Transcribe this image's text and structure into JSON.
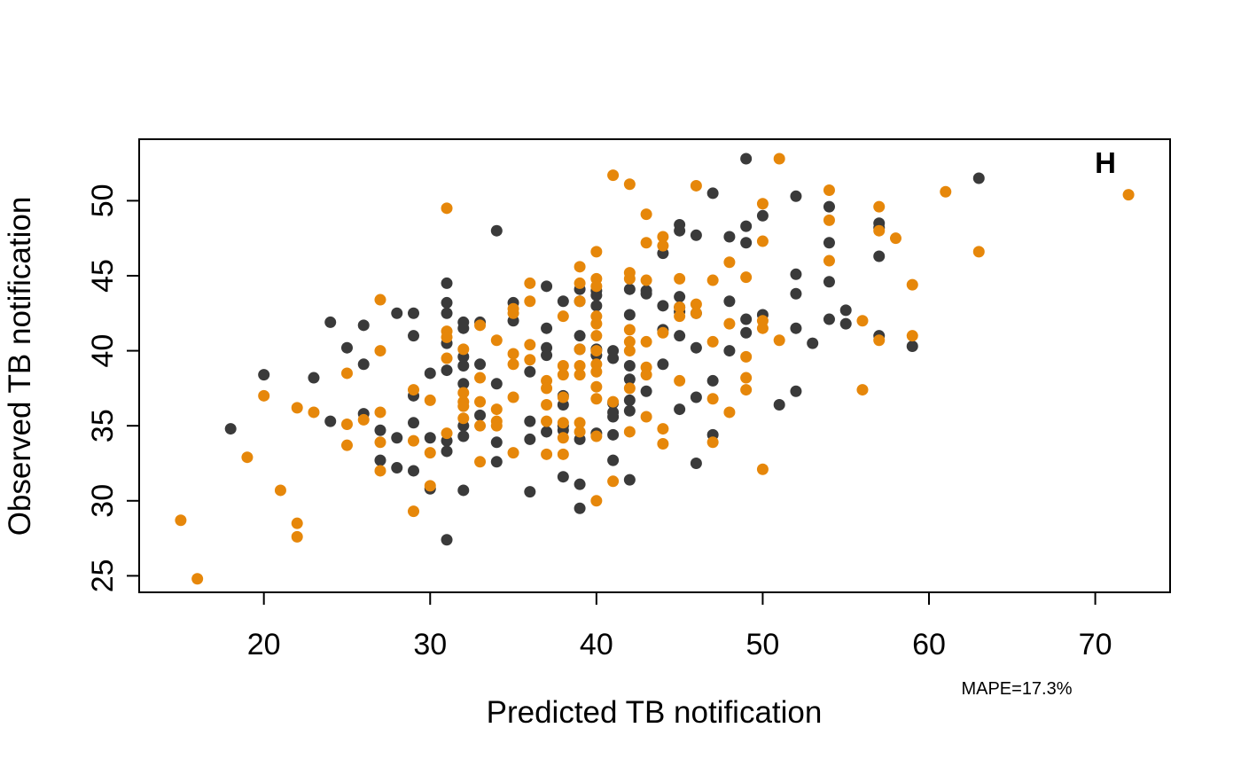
{
  "chart_data": {
    "type": "scatter",
    "title": "",
    "panel_label": "H",
    "xlabel": "Predicted TB notification",
    "ylabel": "Observed TB notification",
    "annotation": "MAPE=17.3%",
    "xlim": [
      12.5,
      74.5
    ],
    "ylim": [
      23.9,
      54.1
    ],
    "x_ticks": [
      20,
      30,
      40,
      50,
      60,
      70
    ],
    "y_ticks": [
      25,
      30,
      35,
      40,
      45,
      50
    ],
    "grid": false,
    "colors": {
      "dark": "#3a3a3a",
      "orange": "#e6870a"
    },
    "series": [
      {
        "color_key": "dark",
        "points": [
          [
            18,
            34.8
          ],
          [
            20,
            38.4
          ],
          [
            23,
            38.2
          ],
          [
            24,
            35.3
          ],
          [
            24,
            41.9
          ],
          [
            25,
            40.2
          ],
          [
            26,
            39.1
          ],
          [
            26,
            41.7
          ],
          [
            26,
            35.8
          ],
          [
            27,
            34.7
          ],
          [
            27,
            32.7
          ],
          [
            28,
            42.5
          ],
          [
            28,
            34.2
          ],
          [
            28,
            32.2
          ],
          [
            29,
            42.5
          ],
          [
            29,
            41.0
          ],
          [
            29,
            37.0
          ],
          [
            29,
            35.2
          ],
          [
            29,
            32.0
          ],
          [
            30,
            38.5
          ],
          [
            30,
            34.2
          ],
          [
            30,
            30.8
          ],
          [
            31,
            44.5
          ],
          [
            31,
            43.2
          ],
          [
            31,
            42.5
          ],
          [
            31,
            40.5
          ],
          [
            31,
            38.7
          ],
          [
            31,
            34.0
          ],
          [
            31,
            33.3
          ],
          [
            31,
            27.4
          ],
          [
            32,
            41.9
          ],
          [
            32,
            41.5
          ],
          [
            32,
            39.6
          ],
          [
            32,
            39.0
          ],
          [
            32,
            37.8
          ],
          [
            32,
            35.0
          ],
          [
            32,
            34.3
          ],
          [
            32,
            30.7
          ],
          [
            33,
            41.9
          ],
          [
            33,
            39.1
          ],
          [
            33,
            35.7
          ],
          [
            34,
            48.0
          ],
          [
            34,
            37.8
          ],
          [
            34,
            33.9
          ],
          [
            34,
            32.6
          ],
          [
            35,
            43.2
          ],
          [
            35,
            42.0
          ],
          [
            36,
            38.6
          ],
          [
            36,
            35.3
          ],
          [
            36,
            34.1
          ],
          [
            36,
            30.6
          ],
          [
            37,
            44.3
          ],
          [
            37,
            41.5
          ],
          [
            37,
            40.2
          ],
          [
            37,
            39.7
          ],
          [
            37,
            34.6
          ],
          [
            38,
            43.3
          ],
          [
            38,
            37.0
          ],
          [
            38,
            36.4
          ],
          [
            38,
            35.0
          ],
          [
            38,
            34.7
          ],
          [
            38,
            31.6
          ],
          [
            39,
            44.1
          ],
          [
            39,
            43.3
          ],
          [
            39,
            41.0
          ],
          [
            39,
            40.1
          ],
          [
            39,
            34.1
          ],
          [
            39,
            31.1
          ],
          [
            39,
            29.5
          ],
          [
            40,
            44.0
          ],
          [
            40,
            43.7
          ],
          [
            40,
            43.0
          ],
          [
            40,
            40.1
          ],
          [
            40,
            39.7
          ],
          [
            40,
            34.5
          ],
          [
            41,
            40.0
          ],
          [
            41,
            39.5
          ],
          [
            41,
            36.5
          ],
          [
            41,
            35.9
          ],
          [
            41,
            35.6
          ],
          [
            41,
            34.4
          ],
          [
            41,
            32.7
          ],
          [
            42,
            44.1
          ],
          [
            42,
            42.4
          ],
          [
            42,
            39.0
          ],
          [
            42,
            38.1
          ],
          [
            42,
            36.7
          ],
          [
            42,
            36.0
          ],
          [
            42,
            31.4
          ],
          [
            43,
            44.0
          ],
          [
            43,
            43.8
          ],
          [
            43,
            37.3
          ],
          [
            44,
            46.5
          ],
          [
            44,
            43.0
          ],
          [
            44,
            41.4
          ],
          [
            44,
            39.1
          ],
          [
            45,
            48.4
          ],
          [
            45,
            48.0
          ],
          [
            45,
            43.6
          ],
          [
            45,
            42.9
          ],
          [
            45,
            42.6
          ],
          [
            45,
            41.0
          ],
          [
            45,
            36.1
          ],
          [
            46,
            47.7
          ],
          [
            46,
            42.5
          ],
          [
            46,
            40.2
          ],
          [
            46,
            36.9
          ],
          [
            46,
            32.5
          ],
          [
            47,
            50.5
          ],
          [
            47,
            38.0
          ],
          [
            47,
            34.4
          ],
          [
            48,
            47.6
          ],
          [
            48,
            43.3
          ],
          [
            48,
            40.0
          ],
          [
            49,
            52.8
          ],
          [
            49,
            48.3
          ],
          [
            49,
            47.2
          ],
          [
            49,
            42.1
          ],
          [
            49,
            41.2
          ],
          [
            50,
            49.0
          ],
          [
            50,
            42.4
          ],
          [
            51,
            36.4
          ],
          [
            52,
            50.3
          ],
          [
            52,
            45.1
          ],
          [
            52,
            43.8
          ],
          [
            52,
            41.5
          ],
          [
            52,
            37.3
          ],
          [
            53,
            40.5
          ],
          [
            54,
            49.6
          ],
          [
            54,
            47.2
          ],
          [
            54,
            44.6
          ],
          [
            54,
            42.1
          ],
          [
            55,
            42.7
          ],
          [
            55,
            41.8
          ],
          [
            57,
            48.5
          ],
          [
            57,
            48.2
          ],
          [
            57,
            46.3
          ],
          [
            57,
            41.0
          ],
          [
            59,
            40.3
          ],
          [
            63,
            51.5
          ]
        ]
      },
      {
        "color_key": "orange",
        "points": [
          [
            15,
            28.7
          ],
          [
            16,
            24.8
          ],
          [
            19,
            32.9
          ],
          [
            20,
            37.0
          ],
          [
            21,
            30.7
          ],
          [
            22,
            36.2
          ],
          [
            22,
            28.5
          ],
          [
            22,
            27.6
          ],
          [
            23,
            35.9
          ],
          [
            25,
            38.5
          ],
          [
            25,
            35.1
          ],
          [
            25,
            33.7
          ],
          [
            26,
            35.4
          ],
          [
            27,
            43.4
          ],
          [
            27,
            40.0
          ],
          [
            27,
            35.9
          ],
          [
            27,
            33.9
          ],
          [
            27,
            32.0
          ],
          [
            29,
            37.4
          ],
          [
            29,
            34.0
          ],
          [
            29,
            29.3
          ],
          [
            30,
            36.7
          ],
          [
            30,
            33.2
          ],
          [
            30,
            31.0
          ],
          [
            31,
            49.5
          ],
          [
            31,
            41.3
          ],
          [
            31,
            40.9
          ],
          [
            31,
            39.5
          ],
          [
            31,
            34.5
          ],
          [
            32,
            40.1
          ],
          [
            32,
            37.2
          ],
          [
            32,
            36.6
          ],
          [
            32,
            36.3
          ],
          [
            32,
            35.5
          ],
          [
            33,
            41.7
          ],
          [
            33,
            38.2
          ],
          [
            33,
            36.6
          ],
          [
            33,
            35.0
          ],
          [
            33,
            32.6
          ],
          [
            34,
            40.7
          ],
          [
            34,
            36.1
          ],
          [
            34,
            35.3
          ],
          [
            34,
            35.0
          ],
          [
            35,
            42.8
          ],
          [
            35,
            42.5
          ],
          [
            35,
            39.8
          ],
          [
            35,
            39.1
          ],
          [
            35,
            36.9
          ],
          [
            35,
            33.2
          ],
          [
            36,
            44.5
          ],
          [
            36,
            43.3
          ],
          [
            36,
            40.4
          ],
          [
            36,
            39.4
          ],
          [
            37,
            38.0
          ],
          [
            37,
            37.5
          ],
          [
            37,
            36.4
          ],
          [
            37,
            35.3
          ],
          [
            37,
            33.1
          ],
          [
            38,
            42.3
          ],
          [
            38,
            39.0
          ],
          [
            38,
            38.4
          ],
          [
            38,
            36.9
          ],
          [
            38,
            35.2
          ],
          [
            38,
            34.2
          ],
          [
            38,
            33.1
          ],
          [
            39,
            45.6
          ],
          [
            39,
            44.5
          ],
          [
            39,
            43.3
          ],
          [
            39,
            40.1
          ],
          [
            39,
            39.0
          ],
          [
            39,
            38.4
          ],
          [
            39,
            35.2
          ],
          [
            39,
            34.6
          ],
          [
            40,
            46.6
          ],
          [
            40,
            44.8
          ],
          [
            40,
            44.3
          ],
          [
            40,
            42.3
          ],
          [
            40,
            41.8
          ],
          [
            40,
            41.0
          ],
          [
            40,
            40.0
          ],
          [
            40,
            39.1
          ],
          [
            40,
            38.6
          ],
          [
            40,
            37.6
          ],
          [
            40,
            36.8
          ],
          [
            40,
            34.3
          ],
          [
            40,
            30.0
          ],
          [
            41,
            51.7
          ],
          [
            41,
            36.6
          ],
          [
            41,
            31.3
          ],
          [
            42,
            51.1
          ],
          [
            42,
            45.2
          ],
          [
            42,
            44.8
          ],
          [
            42,
            41.4
          ],
          [
            42,
            40.6
          ],
          [
            42,
            40.0
          ],
          [
            42,
            37.5
          ],
          [
            42,
            34.6
          ],
          [
            43,
            49.1
          ],
          [
            43,
            47.2
          ],
          [
            43,
            44.7
          ],
          [
            43,
            40.6
          ],
          [
            43,
            38.9
          ],
          [
            43,
            38.4
          ],
          [
            43,
            35.6
          ],
          [
            44,
            47.6
          ],
          [
            44,
            47.0
          ],
          [
            44,
            41.2
          ],
          [
            44,
            34.8
          ],
          [
            44,
            33.8
          ],
          [
            45,
            44.8
          ],
          [
            45,
            42.9
          ],
          [
            45,
            42.3
          ],
          [
            45,
            38.0
          ],
          [
            46,
            51.0
          ],
          [
            46,
            43.1
          ],
          [
            46,
            42.5
          ],
          [
            47,
            44.7
          ],
          [
            47,
            40.6
          ],
          [
            47,
            36.8
          ],
          [
            47,
            33.9
          ],
          [
            48,
            45.9
          ],
          [
            48,
            41.8
          ],
          [
            48,
            35.9
          ],
          [
            49,
            44.9
          ],
          [
            49,
            39.6
          ],
          [
            49,
            38.2
          ],
          [
            49,
            37.4
          ],
          [
            50,
            49.8
          ],
          [
            50,
            47.3
          ],
          [
            50,
            42.0
          ],
          [
            50,
            41.5
          ],
          [
            50,
            32.1
          ],
          [
            51,
            52.8
          ],
          [
            51,
            40.7
          ],
          [
            54,
            50.7
          ],
          [
            54,
            48.7
          ],
          [
            54,
            46.0
          ],
          [
            56,
            42.0
          ],
          [
            56,
            37.4
          ],
          [
            57,
            49.6
          ],
          [
            57,
            48.0
          ],
          [
            57,
            40.7
          ],
          [
            58,
            47.5
          ],
          [
            59,
            44.4
          ],
          [
            59,
            41.0
          ],
          [
            61,
            50.6
          ],
          [
            63,
            46.6
          ],
          [
            72,
            50.4
          ]
        ]
      }
    ]
  }
}
